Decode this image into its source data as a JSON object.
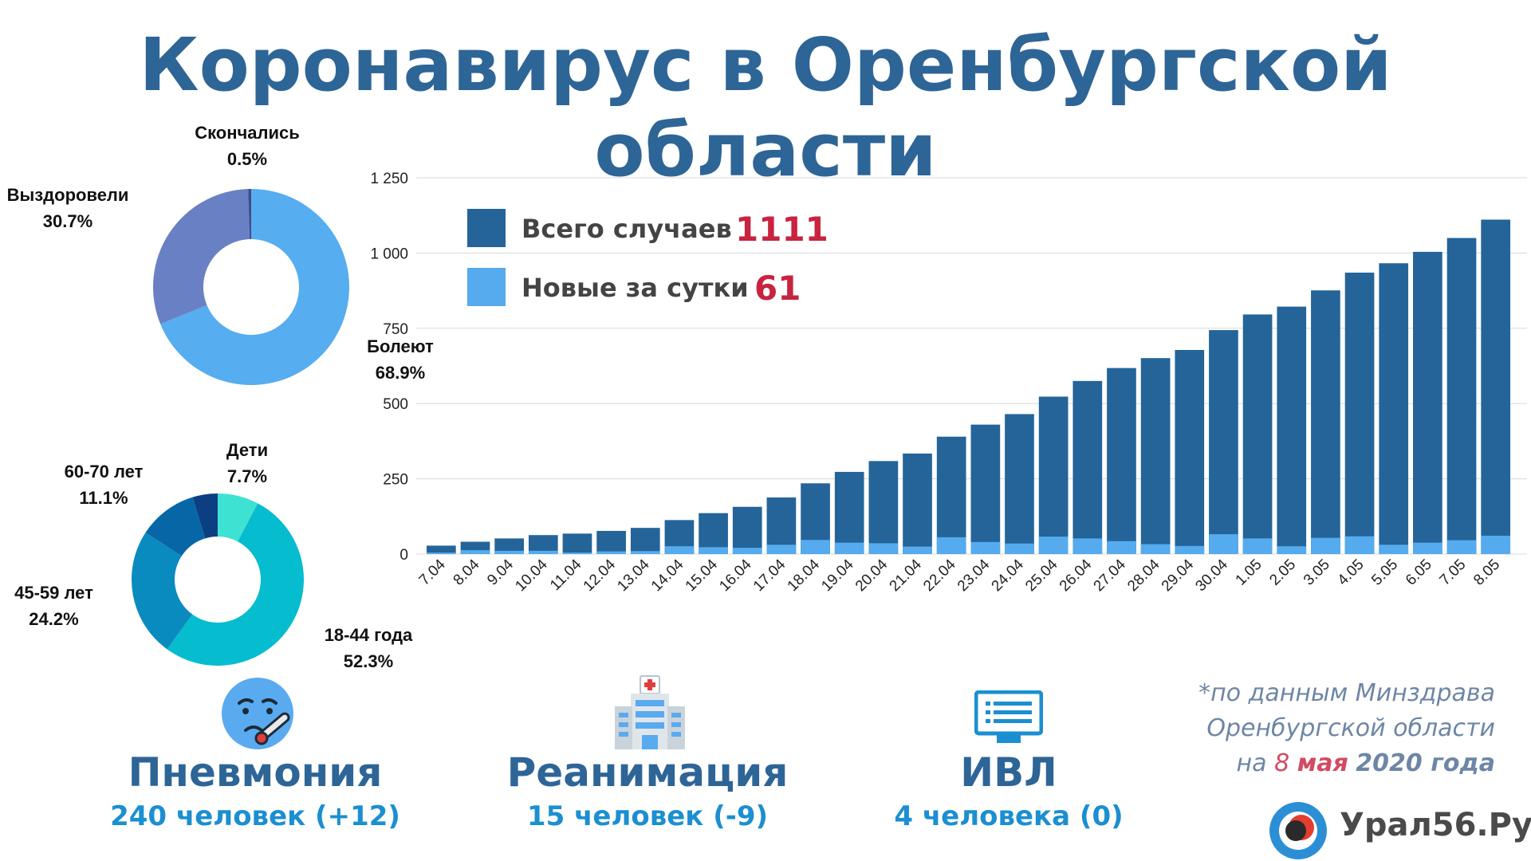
{
  "title": "Коронавирус в Оренбургской области",
  "colors": {
    "title": "#2e6597",
    "total_bar": "#246499",
    "new_bar": "#55abee",
    "accent_red": "#c8233f"
  },
  "chart_data": [
    {
      "type": "bar",
      "title": "",
      "categories": [
        "7.04",
        "8.04",
        "9.04",
        "10.04",
        "11.04",
        "12.04",
        "13.04",
        "14.04",
        "15.04",
        "16.04",
        "17.04",
        "18.04",
        "19.04",
        "20.04",
        "21.04",
        "22.04",
        "23.04",
        "24.04",
        "25.04",
        "26.04",
        "27.04",
        "28.04",
        "29.04",
        "30.04",
        "1.05",
        "2.05",
        "3.05",
        "4.05",
        "5.05",
        "6.05",
        "7.05",
        "8.05"
      ],
      "series": [
        {
          "name": "Всего случаев",
          "color": "#246499",
          "values": [
            28,
            41,
            52,
            63,
            68,
            77,
            87,
            113,
            136,
            157,
            188,
            235,
            273,
            309,
            334,
            390,
            430,
            465,
            523,
            575,
            618,
            651,
            678,
            744,
            796,
            822,
            876,
            935,
            966,
            1004,
            1050,
            1111
          ]
        },
        {
          "name": "Новые за сутки",
          "color": "#55abee",
          "values": [
            5,
            13,
            11,
            11,
            5,
            9,
            10,
            26,
            23,
            21,
            31,
            47,
            38,
            36,
            25,
            56,
            40,
            35,
            58,
            52,
            43,
            33,
            27,
            66,
            52,
            26,
            54,
            59,
            31,
            38,
            46,
            61
          ]
        }
      ],
      "yticks": [
        0,
        250,
        500,
        750,
        1000,
        1250
      ],
      "ytick_labels": [
        "0",
        "250",
        "500",
        "750",
        "1 000",
        "1 250"
      ],
      "ylim": [
        0,
        1250
      ],
      "legend": [
        {
          "label": "Всего случаев",
          "value": "1111"
        },
        {
          "label": "Новые за сутки",
          "value": "61"
        }
      ]
    },
    {
      "type": "pie",
      "variant": "donut",
      "slices": [
        {
          "label": "Болеют",
          "pct": "68.9%",
          "value": 68.9,
          "color": "#56adef"
        },
        {
          "label": "Выздоровели",
          "pct": "30.7%",
          "value": 30.7,
          "color": "#6a80c5"
        },
        {
          "label": "Скончались",
          "pct": "0.5%",
          "value": 0.5,
          "color": "#3d4f86"
        }
      ]
    },
    {
      "type": "pie",
      "variant": "donut",
      "slices": [
        {
          "label": "Дети",
          "pct": "7.7%",
          "value": 7.7,
          "color": "#3ee2d2"
        },
        {
          "label": "18-44 года",
          "pct": "52.3%",
          "value": 52.3,
          "color": "#06bccf"
        },
        {
          "label": "45-59 лет",
          "pct": "24.2%",
          "value": 24.2,
          "color": "#0a8bbf"
        },
        {
          "label": "60-70 лет",
          "pct": "11.1%",
          "value": 11.1,
          "color": "#0666a6"
        },
        {
          "label": "",
          "pct": "",
          "value": 4.7,
          "color": "#0c3f82"
        }
      ]
    }
  ],
  "stats": [
    {
      "title": "Пневмония",
      "sub": "240 человек (+12)",
      "icon": "sick-face-icon"
    },
    {
      "title": "Реанимация",
      "sub": "15 человек (-9)",
      "icon": "hospital-icon"
    },
    {
      "title": "ИВЛ",
      "sub": "4 человека (0)",
      "icon": "monitor-icon"
    }
  ],
  "source": {
    "line1": "*по данным Минздрава",
    "line2": "Оренбургской области",
    "prefix": "на",
    "day": "8",
    "month": "мая",
    "year": "2020 года"
  },
  "logo": {
    "name": "Урал56.Ру"
  }
}
